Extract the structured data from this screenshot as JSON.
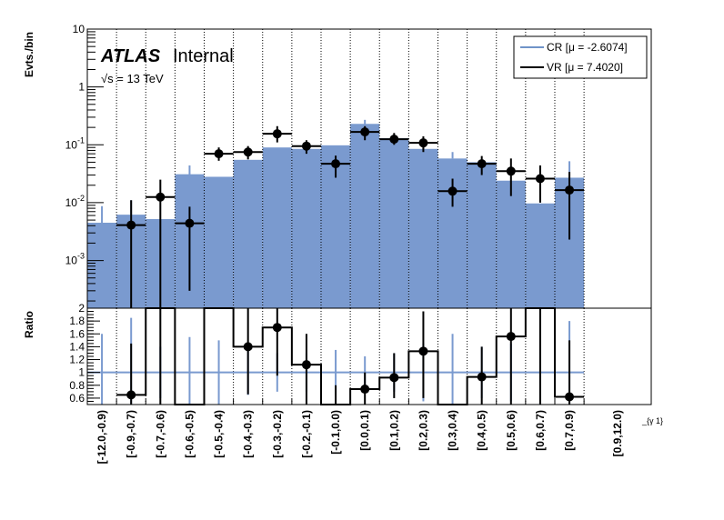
{
  "chart_data": [
    {
      "type": "bar",
      "panel": "main",
      "ylabel": "Evts./bin",
      "yscale": "log",
      "ylim": [
        0.00015,
        10
      ],
      "y_ticks": [
        "10",
        "1",
        "10^-1",
        "10^-2",
        "10^-3"
      ],
      "annotation_brand": "ATLAS",
      "annotation_status": "Internal",
      "annotation_energy": "√s = 13 TeV",
      "categories": [
        "[-12.0,-0.9)",
        "[-0.9,-0.7)",
        "[-0.7,-0.6)",
        "[-0.6,-0.5)",
        "[-0.5,-0.4)",
        "[-0.4,-0.3)",
        "[-0.3,-0.2)",
        "[-0.2,-0.1)",
        "[-0.1,0.0)",
        "[0.0,0.1)",
        "[0.1,0.2)",
        "[0.2,0.3)",
        "[0.3,0.4)",
        "[0.4,0.5)",
        "[0.5,0.6)",
        "[0.6,0.7)",
        "[0.7,0.9)",
        "[0.9,12.0)"
      ],
      "xlabel": "_{γ 1}",
      "legend_position": "top-right",
      "series": [
        {
          "name": "CR [μ = -2.6074]",
          "kind": "filled-histogram",
          "color": "#7a9acf",
          "values": [
            0.0045,
            0.0062,
            0.0052,
            0.031,
            0.028,
            0.055,
            0.09,
            0.085,
            0.098,
            0.23,
            0.13,
            0.085,
            0.058,
            0.05,
            0.024,
            0.0097,
            0.027,
            null
          ],
          "errors": [
            [
              0.0045,
              0.0087
            ],
            [
              0.0062,
              0.011
            ],
            [
              0.0052,
              0.0052
            ],
            [
              0.016,
              0.044
            ],
            [
              0.028,
              0.028
            ],
            [
              0.055,
              0.055
            ],
            [
              0.09,
              0.09
            ],
            [
              0.085,
              0.085
            ],
            [
              0.098,
              0.098
            ],
            [
              0.18,
              0.27
            ],
            [
              0.11,
              0.15
            ],
            [
              0.07,
              0.1
            ],
            [
              0.058,
              0.075
            ],
            [
              0.05,
              0.05
            ],
            [
              0.024,
              0.024
            ],
            [
              0.0097,
              0.0097
            ],
            [
              0.014,
              0.052
            ],
            null
          ]
        },
        {
          "name": "VR [μ = 7.4020]",
          "kind": "points",
          "color": "#000000",
          "values": [
            null,
            0.0041,
            0.0125,
            0.0044,
            0.07,
            0.075,
            0.155,
            0.095,
            0.047,
            0.167,
            0.125,
            0.108,
            0.0158,
            0.047,
            0.035,
            0.026,
            0.0165,
            null
          ],
          "errors": [
            null,
            [
              0.00015,
              0.011
            ],
            [
              0.00015,
              0.025
            ],
            [
              0.0003,
              0.0085
            ],
            [
              0.053,
              0.09
            ],
            [
              0.056,
              0.095
            ],
            [
              0.11,
              0.21
            ],
            [
              0.07,
              0.12
            ],
            [
              0.027,
              0.065
            ],
            [
              0.12,
              0.21
            ],
            [
              0.1,
              0.16
            ],
            [
              0.075,
              0.14
            ],
            [
              0.0085,
              0.026
            ],
            [
              0.03,
              0.064
            ],
            [
              0.013,
              0.058
            ],
            [
              0.01,
              0.044
            ],
            [
              0.0023,
              0.034
            ],
            null
          ]
        }
      ]
    },
    {
      "type": "line",
      "panel": "ratio",
      "ylabel": "Ratio",
      "ylim": [
        0.5,
        2
      ],
      "y_ticks": [
        "2",
        "1.8",
        "1.6",
        "1.4",
        "1.2",
        "1",
        "0.8",
        "0.6"
      ],
      "reference_line": 1,
      "reference_color": "#7a9acf",
      "ratio_values": [
        null,
        0.65,
        2.4,
        0.14,
        2.5,
        1.4,
        1.7,
        1.12,
        0.47,
        0.74,
        0.92,
        1.33,
        0.27,
        0.93,
        1.56,
        2.65,
        0.62,
        null
      ],
      "ratio_errors": [
        null,
        [
          0.0,
          1.45
        ],
        [
          0.0,
          2.5
        ],
        [
          0.0,
          0.3
        ],
        [
          2.0,
          2.5
        ],
        [
          0.66,
          2.0
        ],
        [
          0.95,
          2.3
        ],
        [
          0.5,
          1.6
        ],
        [
          0.0,
          0.8
        ],
        [
          0.45,
          1.0
        ],
        [
          0.6,
          1.3
        ],
        [
          0.6,
          1.95
        ],
        [
          0.0,
          0.5
        ],
        [
          0.35,
          1.4
        ],
        [
          0.5,
          2.4
        ],
        [
          0.0,
          2.5
        ],
        [
          0.0,
          1.5
        ],
        null
      ],
      "band_halfwidths": [
        0.6,
        0.85,
        0.4,
        0.55,
        0.5,
        0.35,
        0.3,
        0.3,
        0.35,
        0.25,
        0.3,
        0.45,
        0.6,
        0.4,
        0.45,
        0.5,
        0.8,
        null
      ]
    }
  ]
}
